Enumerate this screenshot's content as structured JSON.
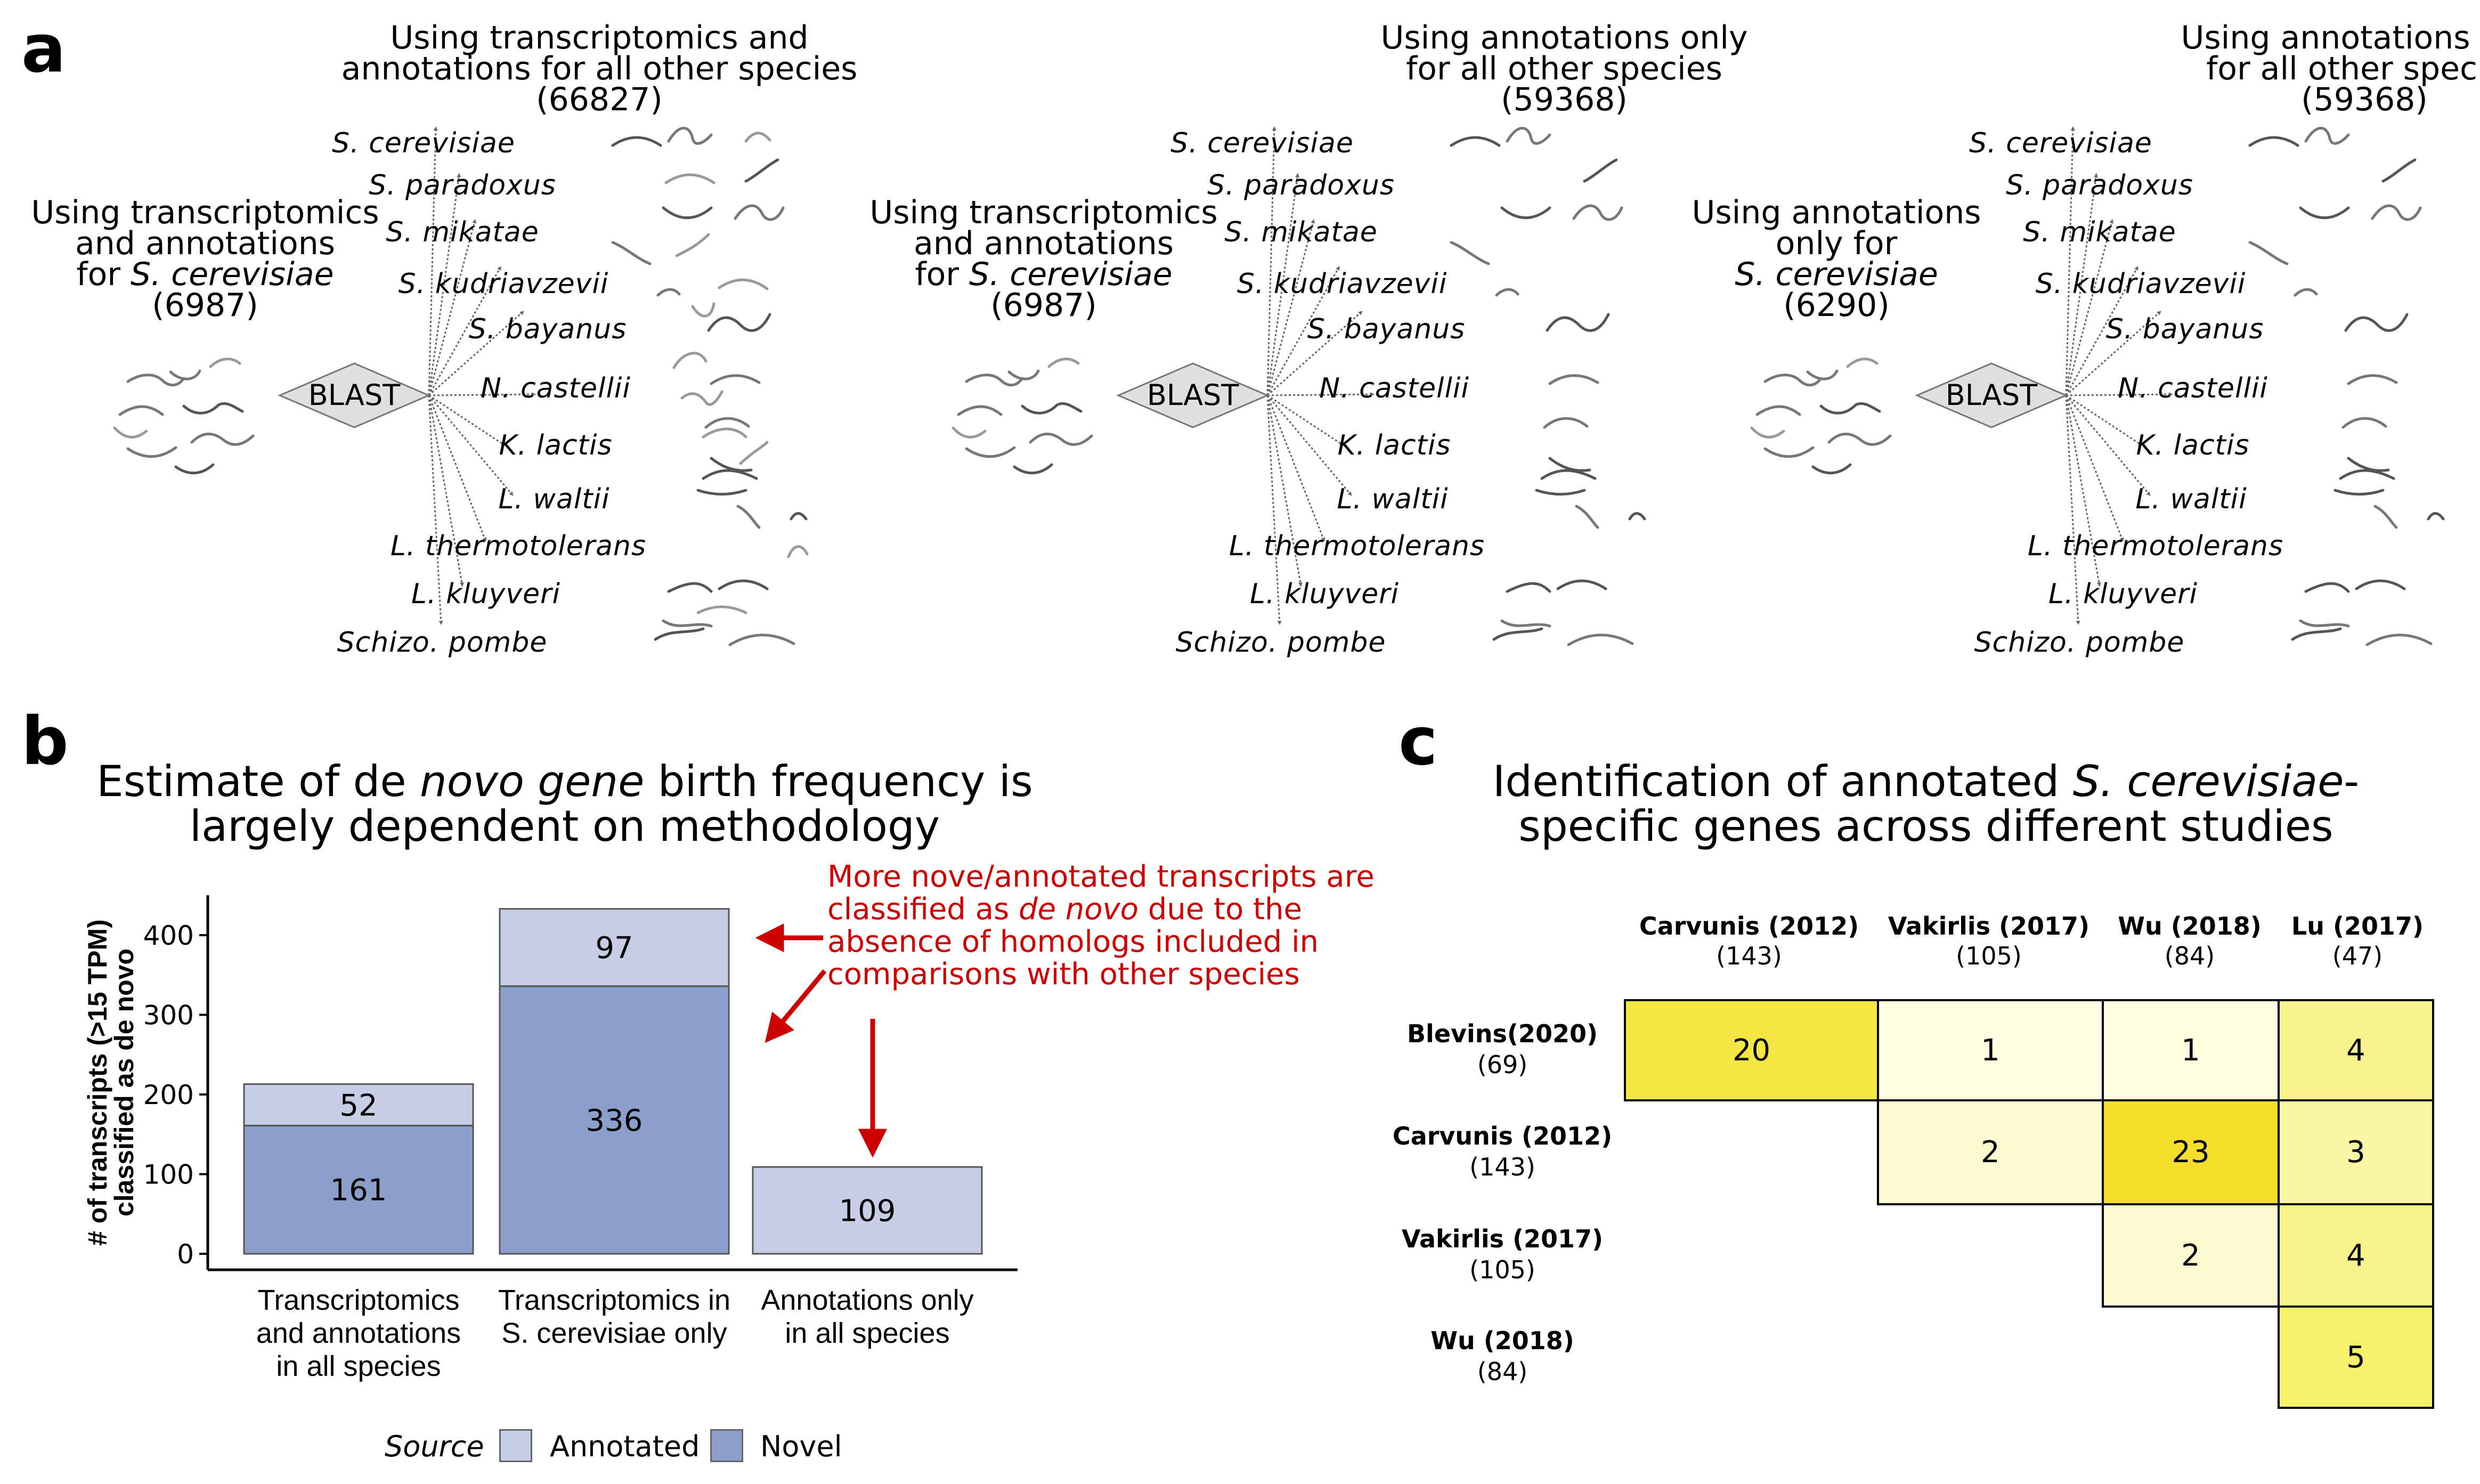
{
  "panel_letters": {
    "a": "a",
    "b": "b",
    "c": "c"
  },
  "panel_a": {
    "blast_label": "BLAST",
    "species": [
      "S. cerevisiae",
      "S. paradoxus",
      "S. mikatae",
      "S. kudriavzevii",
      "S. bayanus",
      "N. castellii",
      "K. lactis",
      "L. waltii",
      "L. thermotolerans",
      "L. kluyveri",
      "Schizo. pombe"
    ],
    "diagrams": [
      {
        "top_header": [
          "Using transcriptomics and",
          "annotations for all other species",
          "(66827)"
        ],
        "left_header": {
          "line1": "Using transcriptomics",
          "line2": "and annotations",
          "line3_prefix": "for ",
          "line3_italic": "S. cerevisiae",
          "line4": "(6987)"
        }
      },
      {
        "top_header": [
          "Using annotations only",
          "for all other species",
          "(59368)"
        ],
        "left_header": {
          "line1": "Using transcriptomics",
          "line2": "and annotations",
          "line3_prefix": "for ",
          "line3_italic": "S. cerevisiae",
          "line4": "(6987)"
        }
      },
      {
        "top_header": [
          "Using annotations only",
          "for all other species",
          "(59368)"
        ],
        "left_header": {
          "line1": "Using annotations",
          "line2": "only for",
          "line3_prefix": "",
          "line3_italic": "S. cerevisiae",
          "line4": "(6290)"
        }
      }
    ]
  },
  "panel_b": {
    "title_line1_pre": "Estimate of de ",
    "title_line1_italic": "novo gene",
    "title_line1_post": " birth frequency is",
    "title_line2": "largely dependent on methodology",
    "annotation": {
      "line1": "More nove/annotated transcripts are",
      "line2_pre": "classified as ",
      "line2_italic": "de novo",
      "line2_post": " due to the",
      "line3": "absence of homologs included in",
      "line4": "comparisons with other species"
    },
    "legend_title": "Source",
    "colors": {
      "Annotated": "#c6cde6",
      "Novel": "#8c9fcb",
      "annotation": "#cc0000"
    }
  },
  "chart_data": {
    "type": "bar",
    "stacked": true,
    "categories": [
      [
        "Transcriptomics",
        "and annotations",
        "in all species"
      ],
      [
        "Transcriptomics in",
        "S. cerevisiae only"
      ],
      [
        "Annotations only",
        "in all species"
      ]
    ],
    "series": [
      {
        "name": "Novel",
        "values": [
          161,
          336,
          0
        ]
      },
      {
        "name": "Annotated",
        "values": [
          52,
          97,
          109
        ]
      }
    ],
    "ylabel": [
      "# of transcripts (>15 TPM)",
      "classified as de novo"
    ],
    "yticks": [
      0,
      100,
      200,
      300,
      400
    ],
    "ylim": [
      0,
      430
    ],
    "legend_placement": "bottom",
    "grid": false
  },
  "panel_c": {
    "title_line1_pre": "Identification of annotated ",
    "title_line1_italic": "S. cerevisiae",
    "title_line1_post": "-",
    "title_line2": "specific genes across different studies",
    "columns": [
      {
        "name": "Carvunis (2012)",
        "count": "(143)"
      },
      {
        "name": "Vakirlis (2017)",
        "count": "(105)"
      },
      {
        "name": "Wu (2018)",
        "count": "(84)"
      },
      {
        "name": "Lu (2017)",
        "count": "(47)"
      }
    ],
    "rows": [
      {
        "name": "Blevins(2020)",
        "count": "(69)"
      },
      {
        "name": "Carvunis (2012)",
        "count": "(143)"
      },
      {
        "name": "Vakirlis (2017)",
        "count": "(105)"
      },
      {
        "name": "Wu (2018)",
        "count": "(84)"
      }
    ],
    "cells": [
      [
        {
          "value": "20",
          "color": "#f4e642"
        },
        {
          "value": "1",
          "color": "#fdfde0"
        },
        {
          "value": "1",
          "color": "#fdfde0"
        },
        {
          "value": "4",
          "color": "#f8f38a"
        }
      ],
      [
        null,
        {
          "value": "2",
          "color": "#fcfbd0"
        },
        {
          "value": "23",
          "color": "#f5df2a"
        },
        {
          "value": "3",
          "color": "#f9f6a6"
        }
      ],
      [
        null,
        null,
        {
          "value": "2",
          "color": "#fcfbd0"
        },
        {
          "value": "4",
          "color": "#f8f38a"
        }
      ],
      [
        null,
        null,
        null,
        {
          "value": "5",
          "color": "#f6f06a"
        }
      ]
    ]
  }
}
